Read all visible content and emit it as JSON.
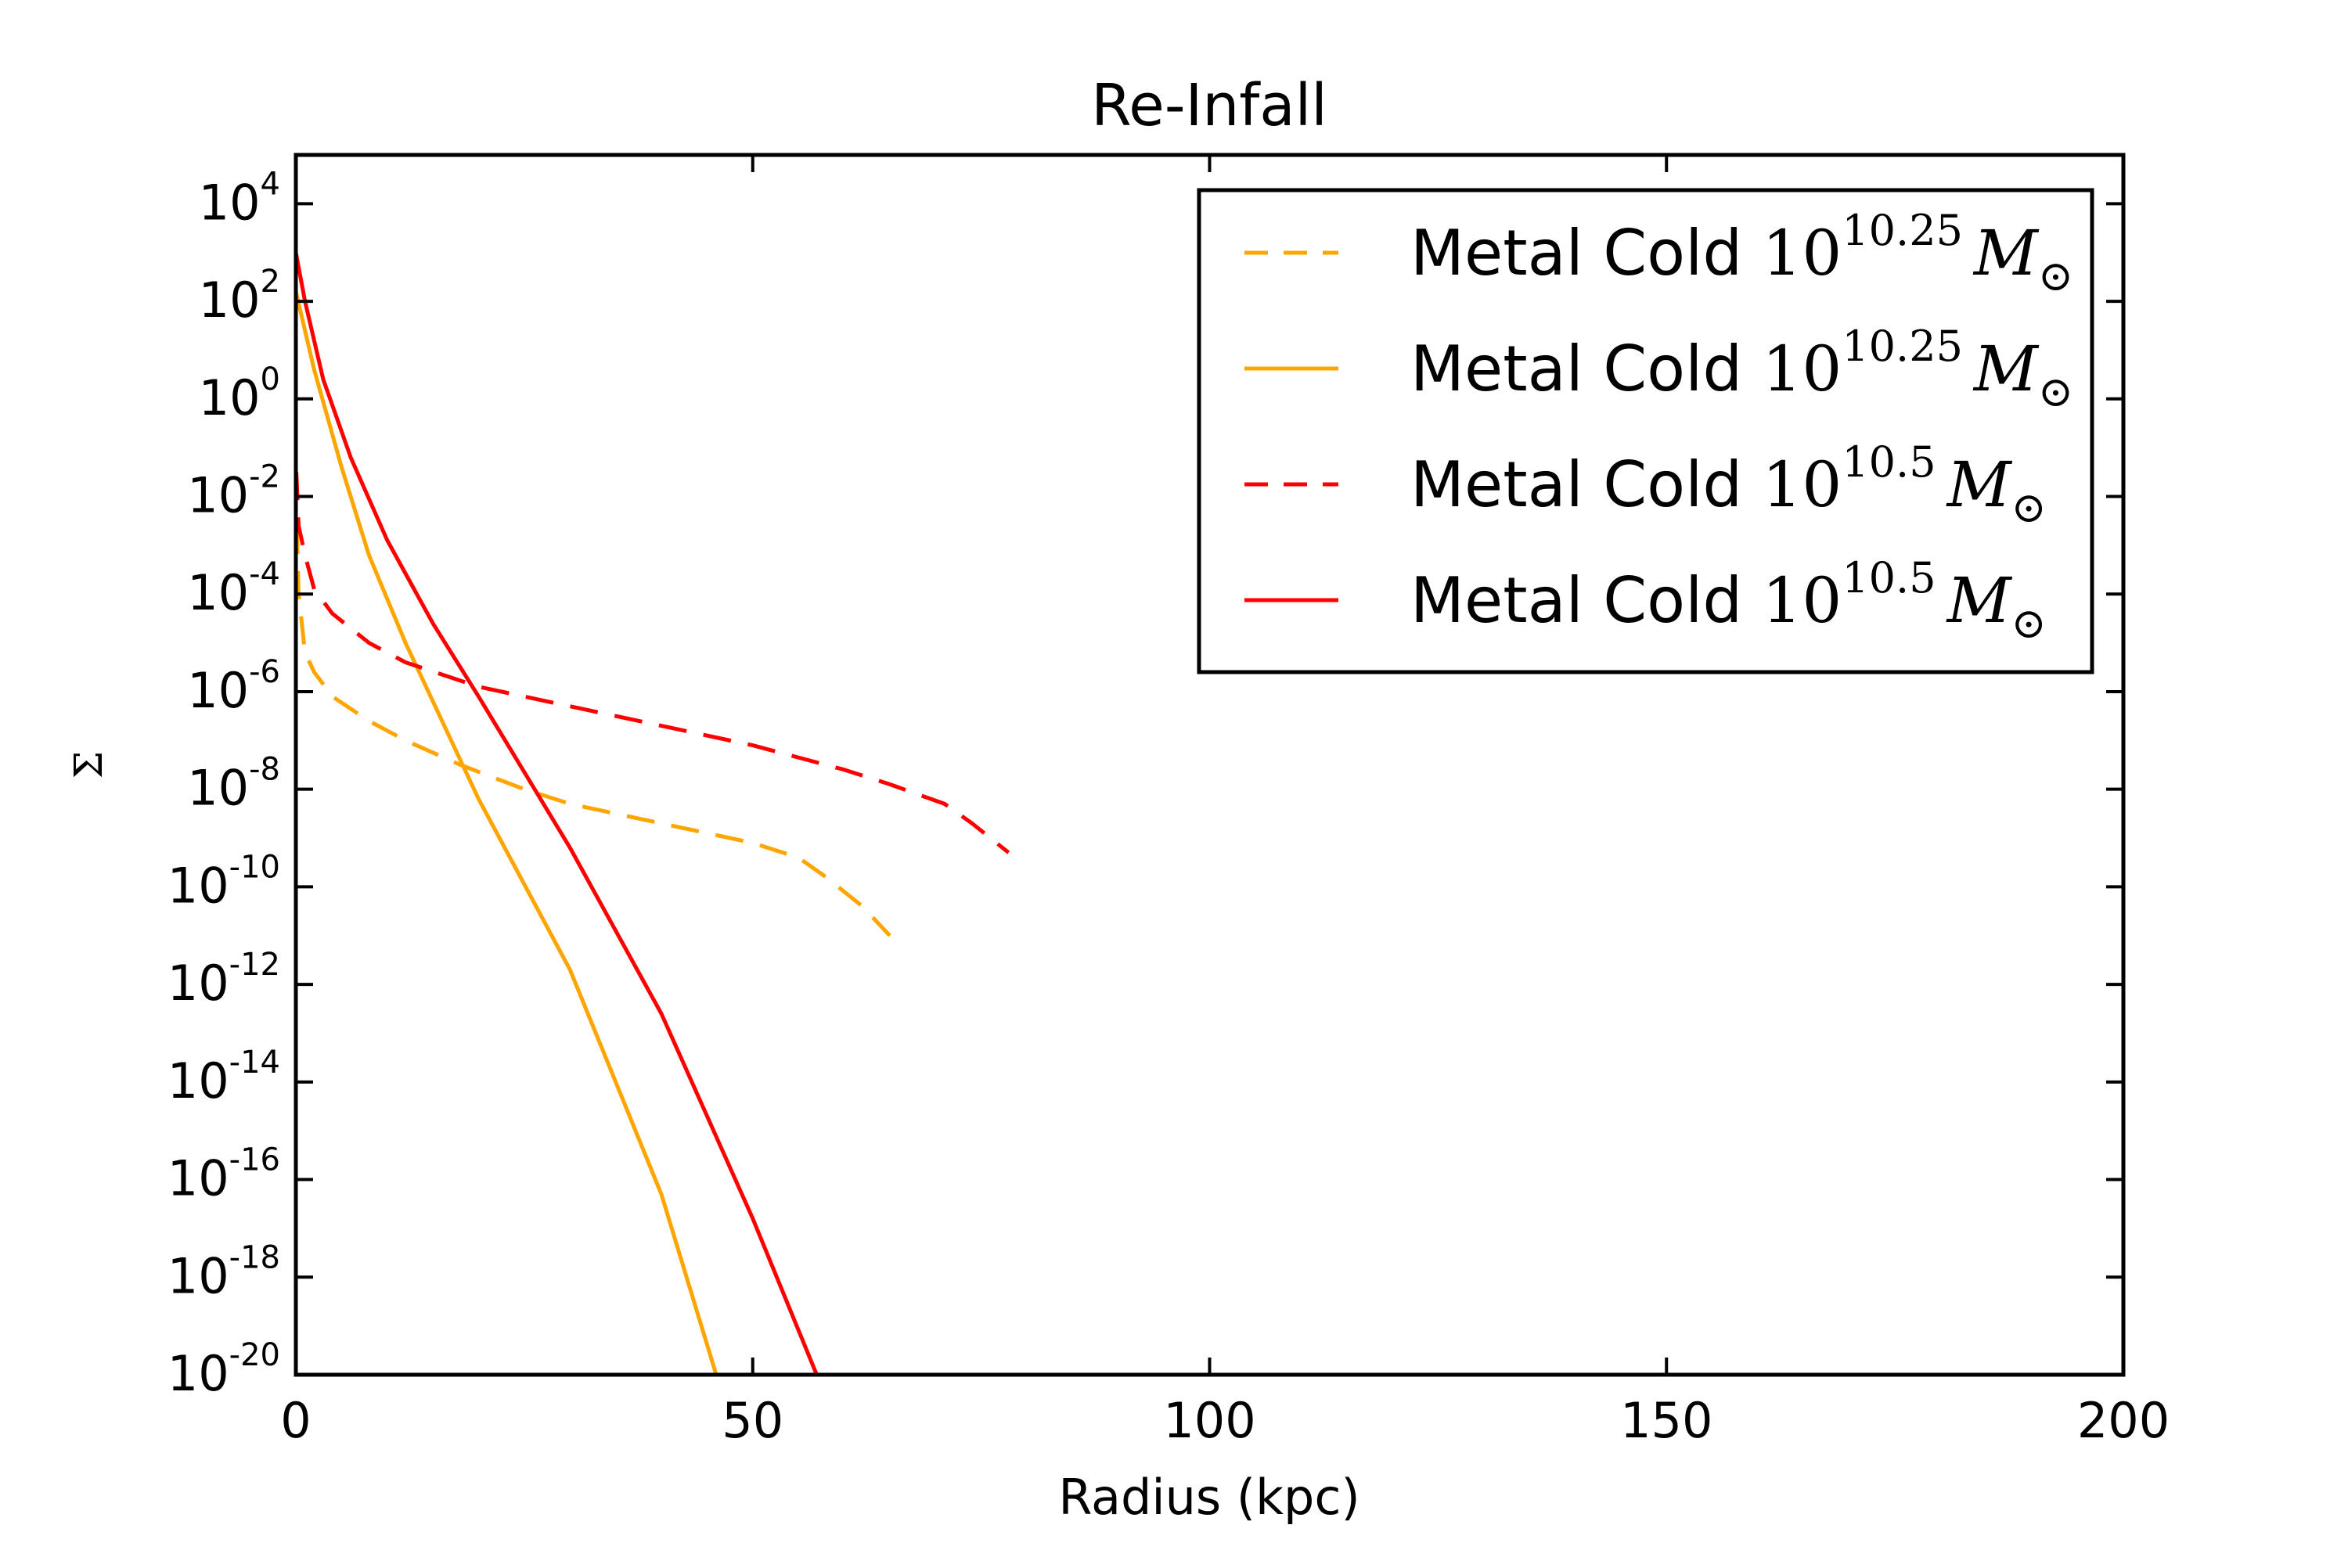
{
  "chart_data": {
    "type": "line",
    "title": "Re-Infall",
    "xlabel": "Radius (kpc)",
    "ylabel": "Σ",
    "xlim": [
      0,
      200
    ],
    "ylim_log10": [
      -20,
      5
    ],
    "y_scale": "log",
    "grid": false,
    "legend_position": "top-right",
    "x_ticks": [
      0,
      50,
      100,
      150,
      200
    ],
    "x_tick_labels": [
      "0",
      "50",
      "100",
      "150",
      "200"
    ],
    "y_ticks_log10": [
      -20,
      -18,
      -16,
      -14,
      -12,
      -10,
      -8,
      -6,
      -4,
      -2,
      0,
      2,
      4
    ],
    "y_tick_labels": [
      {
        "base": "10",
        "exp": "-20"
      },
      {
        "base": "10",
        "exp": "-18"
      },
      {
        "base": "10",
        "exp": "-16"
      },
      {
        "base": "10",
        "exp": "-14"
      },
      {
        "base": "10",
        "exp": "-12"
      },
      {
        "base": "10",
        "exp": "-10"
      },
      {
        "base": "10",
        "exp": "-8"
      },
      {
        "base": "10",
        "exp": "-6"
      },
      {
        "base": "10",
        "exp": "-4"
      },
      {
        "base": "10",
        "exp": "-2"
      },
      {
        "base": "10",
        "exp": "0"
      },
      {
        "base": "10",
        "exp": "2"
      },
      {
        "base": "10",
        "exp": "4"
      }
    ],
    "series": [
      {
        "name": "Metal Cold",
        "mass_base": "10",
        "mass_exp": "10.25",
        "mass_symbol": "M",
        "mass_sub": "⊙",
        "color": "#FFA500",
        "dash": true,
        "points_log10": [
          [
            0.1,
            -2.6
          ],
          [
            0.3,
            -4.0
          ],
          [
            1,
            -5.2
          ],
          [
            2,
            -5.6
          ],
          [
            4,
            -6.1
          ],
          [
            8,
            -6.6
          ],
          [
            12,
            -7.0
          ],
          [
            18,
            -7.5
          ],
          [
            25,
            -8.0
          ],
          [
            30,
            -8.3
          ],
          [
            40,
            -8.7
          ],
          [
            50,
            -9.1
          ],
          [
            55,
            -9.4
          ],
          [
            58,
            -9.8
          ],
          [
            62,
            -10.4
          ],
          [
            65,
            -11.0
          ]
        ]
      },
      {
        "name": "Metal Cold",
        "mass_base": "10",
        "mass_exp": "10.25",
        "mass_symbol": "M",
        "mass_sub": "⊙",
        "color": "#FFA500",
        "dash": false,
        "points_log10": [
          [
            0,
            2.2
          ],
          [
            2,
            0.6
          ],
          [
            5,
            -1.4
          ],
          [
            8,
            -3.2
          ],
          [
            12,
            -5.0
          ],
          [
            16,
            -6.6
          ],
          [
            20,
            -8.2
          ],
          [
            30,
            -11.7
          ],
          [
            40,
            -16.3
          ],
          [
            46,
            -20
          ]
        ]
      },
      {
        "name": "Metal Cold",
        "mass_base": "10",
        "mass_exp": "10.5",
        "mass_symbol": "M",
        "mass_sub": "⊙",
        "color": "#FF0000",
        "dash": true,
        "points_log10": [
          [
            0.05,
            -1.5
          ],
          [
            0.3,
            -2.6
          ],
          [
            1,
            -3.2
          ],
          [
            2,
            -3.9
          ],
          [
            4,
            -4.4
          ],
          [
            8,
            -5.0
          ],
          [
            12,
            -5.4
          ],
          [
            20,
            -5.9
          ],
          [
            30,
            -6.3
          ],
          [
            40,
            -6.7
          ],
          [
            50,
            -7.1
          ],
          [
            60,
            -7.6
          ],
          [
            65,
            -7.9
          ],
          [
            71,
            -8.3
          ],
          [
            74,
            -8.7
          ],
          [
            78,
            -9.3
          ]
        ]
      },
      {
        "name": "Metal Cold",
        "mass_base": "10",
        "mass_exp": "10.5",
        "mass_symbol": "M",
        "mass_sub": "⊙",
        "color": "#FF0000",
        "dash": false,
        "points_log10": [
          [
            0,
            3.0
          ],
          [
            1,
            2.0
          ],
          [
            3,
            0.4
          ],
          [
            6,
            -1.2
          ],
          [
            10,
            -2.9
          ],
          [
            15,
            -4.6
          ],
          [
            20,
            -6.1
          ],
          [
            30,
            -9.2
          ],
          [
            40,
            -12.6
          ],
          [
            50,
            -16.8
          ],
          [
            57,
            -20
          ]
        ]
      }
    ]
  }
}
